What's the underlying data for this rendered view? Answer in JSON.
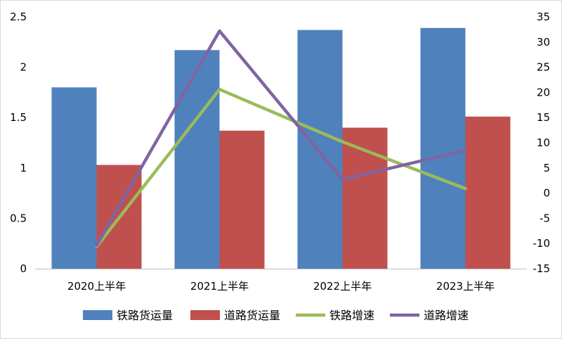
{
  "chart_data": {
    "type": "bar+line",
    "title": "",
    "categories": [
      "2020上半年",
      "2021上半年",
      "2022上半年",
      "2023上半年"
    ],
    "bar_series": [
      {
        "name": "铁路货运量",
        "color": "#4f81bd",
        "values": [
          1.8,
          2.17,
          2.37,
          2.39
        ]
      },
      {
        "name": "道路货运量",
        "color": "#c0504d",
        "values": [
          1.03,
          1.37,
          1.4,
          1.51
        ]
      }
    ],
    "line_series": [
      {
        "name": "铁路增速",
        "color": "#9bbb59",
        "values": [
          -10.6,
          20.6,
          10.2,
          0.9
        ]
      },
      {
        "name": "道路增速",
        "color": "#8064a2",
        "values": [
          -10.4,
          32.2,
          2.7,
          8.5
        ]
      }
    ],
    "y_left": {
      "min": 0,
      "max": 2.5,
      "ticks": [
        "0",
        "0.5",
        "1",
        "1.5",
        "2",
        "2.5"
      ],
      "tick_values": [
        0,
        0.5,
        1,
        1.5,
        2,
        2.5
      ]
    },
    "y_right": {
      "min": -15,
      "max": 35,
      "ticks": [
        "-15",
        "-10",
        "-5",
        "0",
        "5",
        "10",
        "15",
        "20",
        "25",
        "30",
        "35"
      ],
      "tick_values": [
        -15,
        -10,
        -5,
        0,
        5,
        10,
        15,
        20,
        25,
        30,
        35
      ]
    },
    "legend": [
      "铁路货运量",
      "道路货运量",
      "铁路增速",
      "道路增速"
    ],
    "legend_position": "bottom",
    "grid": false
  }
}
